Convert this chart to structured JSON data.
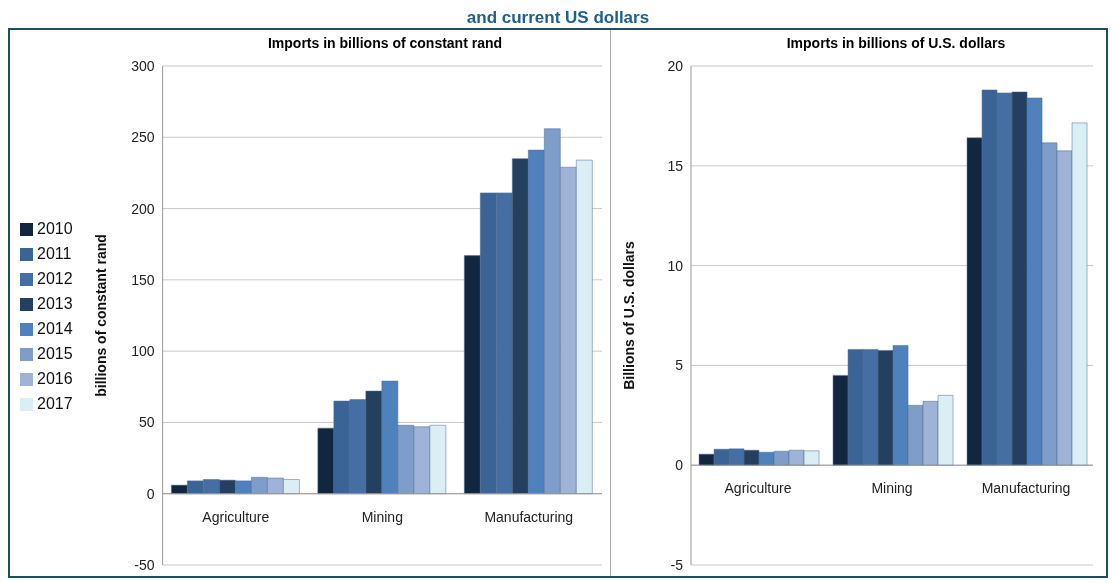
{
  "chart_data": [
    {
      "type": "bar",
      "title": "Imports in billions of constant rand",
      "ylabel": "billions of constant rand",
      "annotations": [
        "and current US dollars"
      ],
      "categories": [
        "Agriculture",
        "Mining",
        "Manufacturing"
      ],
      "series": [
        {
          "name": "2010",
          "color": "#13263f",
          "values": [
            6,
            46,
            167
          ]
        },
        {
          "name": "2011",
          "color": "#3b6496",
          "values": [
            9,
            65,
            211
          ]
        },
        {
          "name": "2012",
          "color": "#456fa3",
          "values": [
            10,
            66,
            211
          ]
        },
        {
          "name": "2013",
          "color": "#253f5f",
          "values": [
            9.5,
            72,
            235
          ]
        },
        {
          "name": "2014",
          "color": "#4f81bd",
          "values": [
            9,
            79,
            241
          ]
        },
        {
          "name": "2015",
          "color": "#7f9dc9",
          "values": [
            11.5,
            48,
            256
          ]
        },
        {
          "name": "2016",
          "color": "#9eb3d5",
          "values": [
            11,
            47,
            229
          ]
        },
        {
          "name": "2017",
          "color": "#dbeef4",
          "values": [
            10,
            48,
            234
          ]
        }
      ],
      "ylim": [
        -50,
        300
      ],
      "yticks": [
        -50,
        0,
        50,
        100,
        150,
        200,
        250,
        300
      ],
      "grid": "y",
      "legend": "left"
    },
    {
      "type": "bar",
      "title": "Imports in billions of U.S. dollars",
      "ylabel": "Billions of U.S. dollars",
      "categories": [
        "Agriculture",
        "Mining",
        "Manufacturing"
      ],
      "series": [
        {
          "color": "#13263f",
          "values": [
            0.55,
            4.5,
            16.4
          ]
        },
        {
          "color": "#3b6496",
          "values": [
            0.8,
            5.8,
            18.8
          ]
        },
        {
          "color": "#456fa3",
          "values": [
            0.82,
            5.8,
            18.65
          ]
        },
        {
          "color": "#253f5f",
          "values": [
            0.75,
            5.75,
            18.7
          ]
        },
        {
          "color": "#4f81bd",
          "values": [
            0.65,
            6.0,
            18.4
          ]
        },
        {
          "color": "#7f9dc9",
          "values": [
            0.7,
            3.0,
            16.15
          ]
        },
        {
          "color": "#9eb3d5",
          "values": [
            0.75,
            3.2,
            15.75
          ]
        },
        {
          "color": "#dbeef4",
          "values": [
            0.72,
            3.5,
            17.15
          ]
        }
      ],
      "ylim": [
        -5,
        20
      ],
      "yticks": [
        -5,
        0,
        5,
        10,
        15,
        20
      ],
      "grid": "y"
    }
  ]
}
